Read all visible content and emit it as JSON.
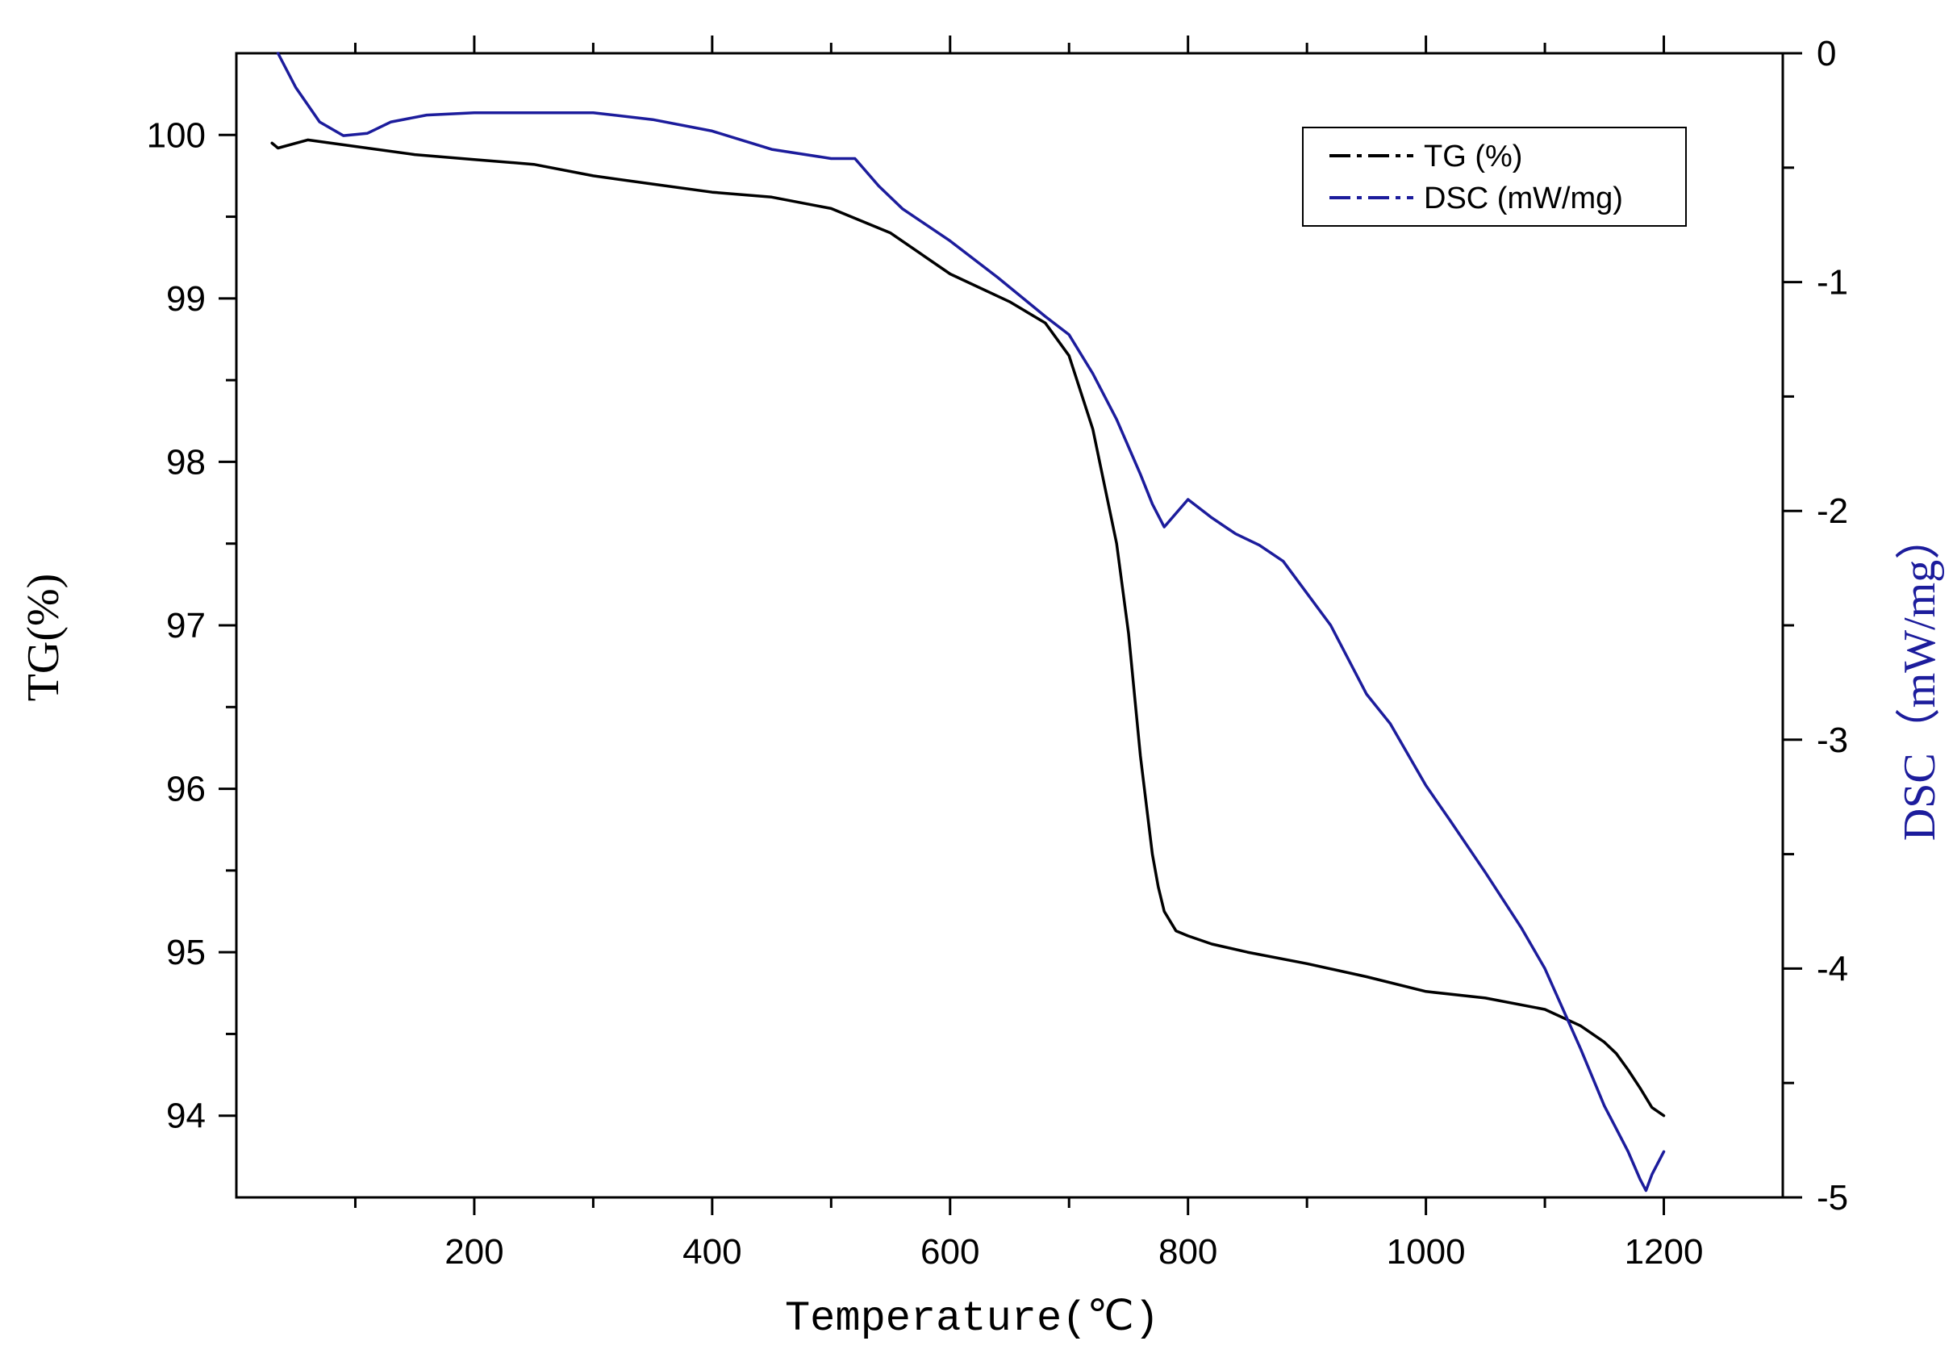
{
  "chart_data": {
    "type": "line",
    "title": "",
    "xlabel": "Temperature(℃)",
    "ylabel": "TG(%)",
    "y2label": "DSC（mW/mg）",
    "xlim": [
      0,
      1300
    ],
    "ylim": [
      93.5,
      100.5
    ],
    "y2lim": [
      -5,
      0
    ],
    "x_ticks": [
      200,
      400,
      600,
      800,
      1000,
      1200
    ],
    "x_tick_labels": [
      "200",
      "400",
      "600",
      "800",
      "1000",
      "1200"
    ],
    "y_ticks": [
      94,
      95,
      96,
      97,
      98,
      99,
      100
    ],
    "y_tick_labels": [
      "94",
      "95",
      "96",
      "97",
      "98",
      "99",
      "100"
    ],
    "y2_ticks": [
      0,
      -1,
      -2,
      -3,
      -4,
      -5
    ],
    "y2_tick_labels": [
      "0",
      "-1",
      "-2",
      "-3",
      "-4",
      "-5"
    ],
    "legend_position": "top-right",
    "grid": false,
    "colors": {
      "tg": "#000000",
      "dsc": "#1c1c9c",
      "y2label": "#1c1c9c"
    },
    "series": [
      {
        "name": "TG (%)",
        "axis": "left",
        "x": [
          30,
          35,
          60,
          100,
          150,
          200,
          250,
          300,
          350,
          400,
          450,
          500,
          550,
          600,
          650,
          680,
          700,
          720,
          740,
          750,
          760,
          770,
          775,
          780,
          790,
          800,
          820,
          850,
          900,
          950,
          1000,
          1050,
          1100,
          1130,
          1150,
          1160,
          1170,
          1180,
          1190,
          1200
        ],
        "values": [
          99.95,
          99.92,
          99.97,
          99.93,
          99.88,
          99.85,
          99.82,
          99.75,
          99.7,
          99.65,
          99.62,
          99.55,
          99.4,
          99.15,
          98.98,
          98.85,
          98.65,
          98.2,
          97.5,
          96.95,
          96.2,
          95.6,
          95.4,
          95.25,
          95.13,
          95.1,
          95.05,
          95.0,
          94.93,
          94.85,
          94.76,
          94.72,
          94.65,
          94.55,
          94.45,
          94.38,
          94.28,
          94.17,
          94.05,
          94.0
        ]
      },
      {
        "name": "DSC (mW/mg)",
        "axis": "right",
        "x": [
          35,
          50,
          70,
          90,
          110,
          130,
          160,
          200,
          250,
          300,
          350,
          400,
          450,
          500,
          520,
          540,
          560,
          580,
          600,
          640,
          680,
          700,
          720,
          740,
          760,
          770,
          780,
          800,
          820,
          840,
          860,
          880,
          920,
          950,
          970,
          1000,
          1020,
          1050,
          1080,
          1100,
          1130,
          1150,
          1160,
          1170,
          1180,
          1185,
          1190,
          1200
        ],
        "values": [
          0.0,
          -0.15,
          -0.3,
          -0.36,
          -0.35,
          -0.3,
          -0.27,
          -0.26,
          -0.26,
          -0.26,
          -0.29,
          -0.34,
          -0.42,
          -0.46,
          -0.46,
          -0.58,
          -0.68,
          -0.75,
          -0.82,
          -0.98,
          -1.15,
          -1.23,
          -1.4,
          -1.6,
          -1.84,
          -1.97,
          -2.07,
          -1.95,
          -2.03,
          -2.1,
          -2.15,
          -2.22,
          -2.5,
          -2.8,
          -2.93,
          -3.2,
          -3.35,
          -3.58,
          -3.82,
          -4.0,
          -4.35,
          -4.6,
          -4.7,
          -4.8,
          -4.92,
          -4.97,
          -4.9,
          -4.8
        ]
      }
    ]
  }
}
